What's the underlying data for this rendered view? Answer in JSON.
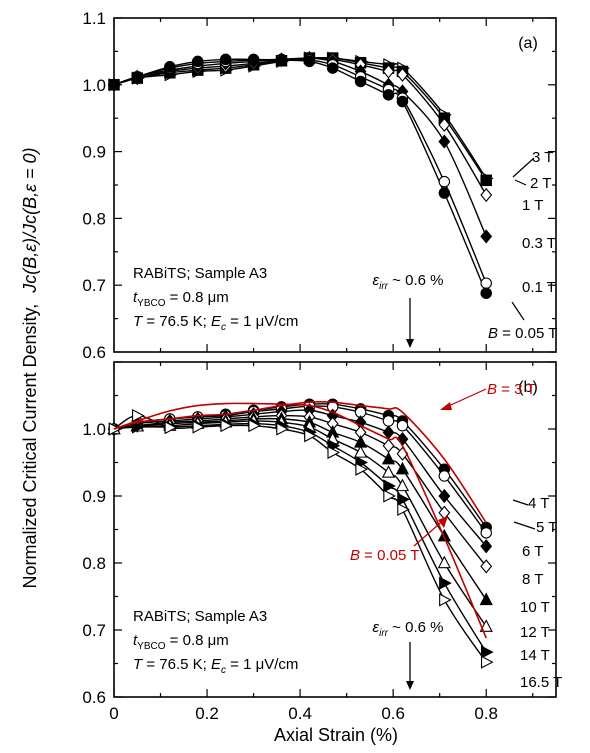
{
  "figure": {
    "ylabel_main": "Normalized Critical Current Density,",
    "ylabel_formula": "Jc(B,ε)/Jc(B,ε = 0)",
    "xlabel": "Axial Strain (%)"
  },
  "colors": {
    "black": "#000000",
    "red": "#c00000"
  },
  "chart_data": [
    {
      "type": "scatter",
      "panel_label": "(a)",
      "xlim": [
        0,
        0.95
      ],
      "ylim": [
        0.6,
        1.1
      ],
      "x_ticks": [
        "0",
        "0.2",
        "0.4",
        "0.6",
        "0.8"
      ],
      "y_ticks": [
        "0.6",
        "0.7",
        "0.8",
        "0.9",
        "1.0",
        "1.1"
      ],
      "info_lines": [
        "RABiTS; Sample A3",
        "tYBCO = 0.8 μm",
        "T = 76.5 K; Ec = 1 μV/cm"
      ],
      "irr_label": "εirr ~ 0.6 %",
      "irr_x": 0.6,
      "series": [
        {
          "name": "3 T",
          "marker": "triangle-right-open",
          "x": [
            0,
            0.05,
            0.12,
            0.18,
            0.24,
            0.3,
            0.36,
            0.42,
            0.47,
            0.53,
            0.59,
            0.62,
            0.71,
            0.8
          ],
          "y": [
            1.0,
            1.01,
            1.015,
            1.02,
            1.022,
            1.028,
            1.035,
            1.04,
            1.04,
            1.035,
            1.03,
            1.025,
            0.955,
            0.86
          ]
        },
        {
          "name": "2 T",
          "marker": "square-filled",
          "x": [
            0,
            0.05,
            0.12,
            0.18,
            0.24,
            0.3,
            0.36,
            0.42,
            0.47,
            0.53,
            0.59,
            0.62,
            0.71,
            0.8
          ],
          "y": [
            1.0,
            1.01,
            1.018,
            1.022,
            1.025,
            1.03,
            1.036,
            1.04,
            1.04,
            1.033,
            1.025,
            1.02,
            0.95,
            0.857
          ]
        },
        {
          "name": "1 T",
          "marker": "diamond-open",
          "x": [
            0,
            0.05,
            0.12,
            0.18,
            0.24,
            0.3,
            0.36,
            0.42,
            0.47,
            0.53,
            0.59,
            0.62,
            0.71,
            0.8
          ],
          "y": [
            1.0,
            1.01,
            1.02,
            1.025,
            1.028,
            1.032,
            1.037,
            1.04,
            1.038,
            1.03,
            1.02,
            1.015,
            0.94,
            0.835
          ]
        },
        {
          "name": "0.3 T",
          "marker": "diamond-filled",
          "x": [
            0,
            0.05,
            0.12,
            0.18,
            0.24,
            0.3,
            0.36,
            0.42,
            0.47,
            0.53,
            0.59,
            0.62,
            0.71,
            0.8
          ],
          "y": [
            1.0,
            1.012,
            1.022,
            1.028,
            1.032,
            1.035,
            1.038,
            1.04,
            1.035,
            1.02,
            1.0,
            0.99,
            0.915,
            0.773
          ]
        },
        {
          "name": "0.1 T",
          "marker": "circle-open",
          "x": [
            0,
            0.05,
            0.12,
            0.18,
            0.24,
            0.3,
            0.36,
            0.42,
            0.47,
            0.53,
            0.59,
            0.62,
            0.71,
            0.8
          ],
          "y": [
            1.0,
            1.012,
            1.025,
            1.032,
            1.035,
            1.037,
            1.038,
            1.037,
            1.03,
            1.012,
            0.993,
            0.98,
            0.855,
            0.703
          ]
        },
        {
          "name": "B = 0.05 T",
          "marker": "circle-filled",
          "x": [
            0,
            0.05,
            0.12,
            0.18,
            0.24,
            0.3,
            0.36,
            0.42,
            0.47,
            0.53,
            0.59,
            0.62,
            0.71,
            0.8
          ],
          "y": [
            1.0,
            1.012,
            1.027,
            1.035,
            1.038,
            1.038,
            1.037,
            1.035,
            1.025,
            1.005,
            0.985,
            0.975,
            0.838,
            0.688
          ]
        }
      ]
    },
    {
      "type": "scatter",
      "panel_label": "(b)",
      "xlim": [
        0,
        0.95
      ],
      "ylim": [
        0.6,
        1.1
      ],
      "x_ticks": [
        "0",
        "0.2",
        "0.4",
        "0.6",
        "0.8"
      ],
      "y_ticks": [
        "0.6",
        "0.7",
        "0.8",
        "0.9",
        "1.0",
        "1.1"
      ],
      "info_lines": [
        "RABiTS; Sample A3",
        "tYBCO = 0.8 μm",
        "T = 76.5 K; Ec = 1 μV/cm"
      ],
      "irr_label": "εirr ~ 0.6 %",
      "irr_x": 0.6,
      "red_labels": [
        "B = 3 T",
        "B = 0.05 T"
      ],
      "series": [
        {
          "name": "4 T",
          "marker": "circle-filled",
          "x": [
            0,
            0.05,
            0.12,
            0.18,
            0.24,
            0.3,
            0.36,
            0.42,
            0.47,
            0.53,
            0.59,
            0.62,
            0.71,
            0.8
          ],
          "y": [
            1.0,
            1.01,
            1.015,
            1.018,
            1.022,
            1.028,
            1.033,
            1.037,
            1.037,
            1.03,
            1.02,
            1.012,
            0.94,
            0.853
          ]
        },
        {
          "name": "5 T",
          "marker": "circle-open",
          "x": [
            0,
            0.05,
            0.12,
            0.18,
            0.24,
            0.3,
            0.36,
            0.42,
            0.47,
            0.53,
            0.59,
            0.62,
            0.71,
            0.8
          ],
          "y": [
            1.0,
            1.01,
            1.015,
            1.018,
            1.02,
            1.026,
            1.03,
            1.034,
            1.033,
            1.025,
            1.012,
            1.005,
            0.93,
            0.845
          ]
        },
        {
          "name": "6 T",
          "marker": "diamond-filled",
          "x": [
            0,
            0.05,
            0.12,
            0.18,
            0.24,
            0.3,
            0.36,
            0.42,
            0.47,
            0.53,
            0.59,
            0.62,
            0.71,
            0.8
          ],
          "y": [
            1.0,
            1.008,
            1.012,
            1.015,
            1.018,
            1.022,
            1.026,
            1.028,
            1.02,
            1.01,
            0.995,
            0.985,
            0.9,
            0.825
          ]
        },
        {
          "name": "8 T",
          "marker": "diamond-open",
          "x": [
            0,
            0.05,
            0.12,
            0.18,
            0.24,
            0.3,
            0.36,
            0.42,
            0.47,
            0.53,
            0.59,
            0.62,
            0.71,
            0.8
          ],
          "y": [
            1.0,
            1.005,
            1.01,
            1.012,
            1.015,
            1.018,
            1.02,
            1.018,
            1.008,
            0.995,
            0.975,
            0.963,
            0.875,
            0.795
          ]
        },
        {
          "name": "10 T",
          "marker": "triangle-up-filled",
          "x": [
            0,
            0.05,
            0.12,
            0.18,
            0.24,
            0.3,
            0.36,
            0.42,
            0.47,
            0.53,
            0.59,
            0.62,
            0.71,
            0.8
          ],
          "y": [
            1.0,
            1.005,
            1.008,
            1.01,
            1.012,
            1.015,
            1.015,
            1.01,
            0.995,
            0.98,
            0.955,
            0.94,
            0.84,
            0.745
          ]
        },
        {
          "name": "12 T",
          "marker": "triangle-up-open",
          "x": [
            0,
            0.05,
            0.12,
            0.18,
            0.24,
            0.3,
            0.36,
            0.42,
            0.47,
            0.53,
            0.59,
            0.62,
            0.71,
            0.8
          ],
          "y": [
            1.0,
            1.004,
            1.005,
            1.008,
            1.01,
            1.012,
            1.01,
            1.003,
            0.985,
            0.965,
            0.935,
            0.915,
            0.8,
            0.705
          ]
        },
        {
          "name": "14 T",
          "marker": "triangle-right-filled",
          "x": [
            0,
            0.05,
            0.12,
            0.18,
            0.24,
            0.3,
            0.36,
            0.42,
            0.47,
            0.53,
            0.59,
            0.62,
            0.71,
            0.8
          ],
          "y": [
            1.0,
            1.003,
            1.003,
            1.005,
            1.007,
            1.008,
            1.005,
            0.995,
            0.975,
            0.95,
            0.915,
            0.895,
            0.77,
            0.667
          ]
        },
        {
          "name": "16.5 T",
          "marker": "triangle-right-open",
          "x": [
            0,
            0.05,
            0.12,
            0.18,
            0.24,
            0.3,
            0.36,
            0.42,
            0.47,
            0.53,
            0.59,
            0.62,
            0.71,
            0.8
          ],
          "y": [
            1.0,
            1.02,
            1.002,
            1.003,
            1.005,
            1.005,
            1.0,
            0.99,
            0.965,
            0.94,
            0.9,
            0.88,
            0.745,
            0.652
          ]
        }
      ]
    }
  ]
}
